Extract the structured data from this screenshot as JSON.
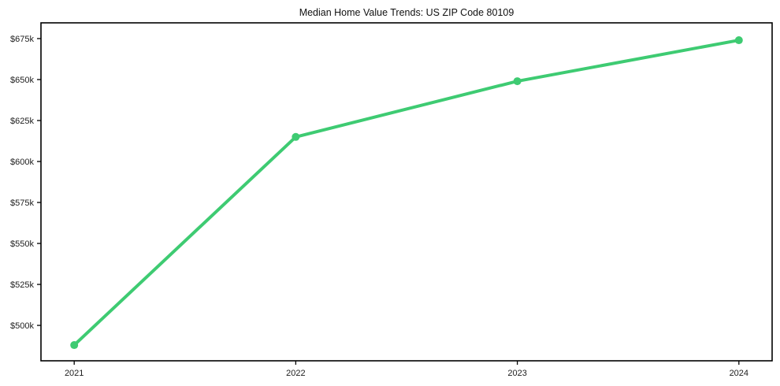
{
  "chart_data": {
    "type": "line",
    "title": "Median Home Value Trends: US ZIP Code 80109",
    "xlabel": "",
    "ylabel": "",
    "x": [
      2021,
      2022,
      2023,
      2024
    ],
    "x_tick_labels": [
      "2021",
      "2022",
      "2023",
      "2024"
    ],
    "series": [
      {
        "name": "median-home-value",
        "values": [
          488000,
          615000,
          649000,
          674000
        ],
        "color": "#3ecb72"
      }
    ],
    "y_tick_values": [
      500000,
      525000,
      550000,
      575000,
      600000,
      625000,
      650000,
      675000
    ],
    "y_tick_labels": [
      "$500k",
      "$525k",
      "$550k",
      "$575k",
      "$600k",
      "$625k",
      "$650k",
      "$675k"
    ],
    "xlim": [
      2020.85,
      2024.15
    ],
    "ylim": [
      478400,
      684600
    ],
    "grid": false,
    "legend_position": "none",
    "line_width": 4,
    "marker_radius": 5,
    "axis_color": "#000000",
    "text_color": "#1c1c1c",
    "background_color": "#ffffff",
    "tick_font_size": 11
  }
}
